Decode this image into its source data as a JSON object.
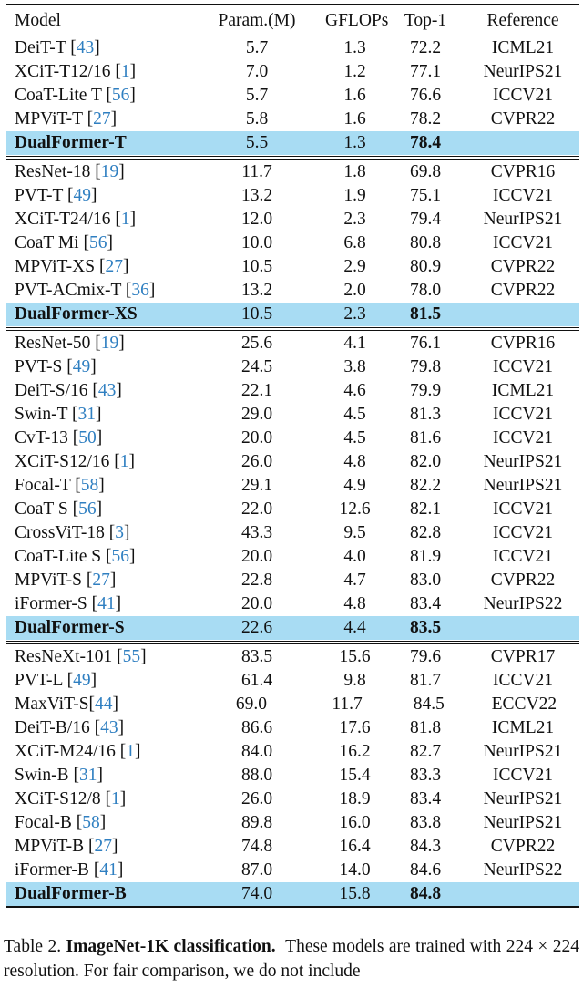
{
  "table": {
    "headers": [
      "Model",
      "Param.(M)",
      "GFLOPs",
      "Top-1",
      "Reference"
    ],
    "groups": [
      {
        "rows": [
          {
            "model": "DeiT-T",
            "cite": "43",
            "param": "5.7",
            "gflops": "1.3",
            "top1": "72.2",
            "ref": "ICML21"
          },
          {
            "model": "XCiT-T12/16",
            "cite": "1",
            "param": "7.0",
            "gflops": "1.2",
            "top1": "77.1",
            "ref": "NeurIPS21"
          },
          {
            "model": "CoaT-Lite T",
            "cite": "56",
            "param": "5.7",
            "gflops": "1.6",
            "top1": "76.6",
            "ref": "ICCV21"
          },
          {
            "model": "MPViT-T",
            "cite": "27",
            "param": "5.8",
            "gflops": "1.6",
            "top1": "78.2",
            "ref": "CVPR22"
          },
          {
            "model": "DualFormer-T",
            "cite": "",
            "param": "5.5",
            "gflops": "1.3",
            "top1": "78.4",
            "ref": "",
            "highlight": true
          }
        ]
      },
      {
        "rows": [
          {
            "model": "ResNet-18",
            "cite": "19",
            "param": "11.7",
            "gflops": "1.8",
            "top1": "69.8",
            "ref": "CVPR16"
          },
          {
            "model": "PVT-T",
            "cite": "49",
            "param": "13.2",
            "gflops": "1.9",
            "top1": "75.1",
            "ref": "ICCV21"
          },
          {
            "model": "XCiT-T24/16",
            "cite": "1",
            "param": "12.0",
            "gflops": "2.3",
            "top1": "79.4",
            "ref": "NeurIPS21"
          },
          {
            "model": "CoaT Mi",
            "cite": "56",
            "param": "10.0",
            "gflops": "6.8",
            "top1": "80.8",
            "ref": "ICCV21"
          },
          {
            "model": "MPViT-XS",
            "cite": "27",
            "param": "10.5",
            "gflops": "2.9",
            "top1": "80.9",
            "ref": "CVPR22"
          },
          {
            "model": "PVT-ACmix-T",
            "cite": "36",
            "param": "13.2",
            "gflops": "2.0",
            "top1": "78.0",
            "ref": "CVPR22"
          },
          {
            "model": "DualFormer-XS",
            "cite": "",
            "param": "10.5",
            "gflops": "2.3",
            "top1": "81.5",
            "ref": "",
            "highlight": true
          }
        ]
      },
      {
        "rows": [
          {
            "model": "ResNet-50",
            "cite": "19",
            "param": "25.6",
            "gflops": "4.1",
            "top1": "76.1",
            "ref": "CVPR16"
          },
          {
            "model": "PVT-S",
            "cite": "49",
            "param": "24.5",
            "gflops": "3.8",
            "top1": "79.8",
            "ref": "ICCV21"
          },
          {
            "model": "DeiT-S/16",
            "cite": "43",
            "param": "22.1",
            "gflops": "4.6",
            "top1": "79.9",
            "ref": "ICML21"
          },
          {
            "model": "Swin-T",
            "cite": "31",
            "param": "29.0",
            "gflops": "4.5",
            "top1": "81.3",
            "ref": "ICCV21"
          },
          {
            "model": "CvT-13",
            "cite": "50",
            "param": "20.0",
            "gflops": "4.5",
            "top1": "81.6",
            "ref": "ICCV21"
          },
          {
            "model": "XCiT-S12/16",
            "cite": "1",
            "param": "26.0",
            "gflops": "4.8",
            "top1": "82.0",
            "ref": "NeurIPS21"
          },
          {
            "model": "Focal-T",
            "cite": "58",
            "param": "29.1",
            "gflops": "4.9",
            "top1": "82.2",
            "ref": "NeurIPS21"
          },
          {
            "model": "CoaT S",
            "cite": "56",
            "param": "22.0",
            "gflops": "12.6",
            "top1": "82.1",
            "ref": "ICCV21"
          },
          {
            "model": "CrossViT-18",
            "cite": "3",
            "param": "43.3",
            "gflops": "9.5",
            "top1": "82.8",
            "ref": "ICCV21"
          },
          {
            "model": "CoaT-Lite S",
            "cite": "56",
            "param": "20.0",
            "gflops": "4.0",
            "top1": "81.9",
            "ref": "ICCV21"
          },
          {
            "model": "MPViT-S",
            "cite": "27",
            "param": "22.8",
            "gflops": "4.7",
            "top1": "83.0",
            "ref": "CVPR22"
          },
          {
            "model": "iFormer-S",
            "cite": "41",
            "param": "20.0",
            "gflops": "4.8",
            "top1": "83.4",
            "ref": "NeurIPS22"
          },
          {
            "model": "DualFormer-S",
            "cite": "",
            "param": "22.6",
            "gflops": "4.4",
            "top1": "83.5",
            "ref": "",
            "highlight": true
          }
        ]
      },
      {
        "rows": [
          {
            "model": "ResNeXt-101",
            "cite": "55",
            "param": "83.5",
            "gflops": "15.6",
            "top1": "79.6",
            "ref": "CVPR17"
          },
          {
            "model": "PVT-L",
            "cite": "49",
            "param": "61.4",
            "gflops": "9.8",
            "top1": "81.7",
            "ref": "ICCV21"
          },
          {
            "model": "MaxViT-S",
            "cite": "44",
            "nospace": true,
            "param": "69.0",
            "gflops": "11.7",
            "top1": "84.5",
            "ref": "ECCV22",
            "top1_shift": true
          },
          {
            "model": "DeiT-B/16",
            "cite": "43",
            "param": "86.6",
            "gflops": "17.6",
            "top1": "81.8",
            "ref": "ICML21"
          },
          {
            "model": "XCiT-M24/16",
            "cite": "1",
            "param": "84.0",
            "gflops": "16.2",
            "top1": "82.7",
            "ref": "NeurIPS21"
          },
          {
            "model": "Swin-B",
            "cite": "31",
            "param": "88.0",
            "gflops": "15.4",
            "top1": "83.3",
            "ref": "ICCV21"
          },
          {
            "model": "XCiT-S12/8",
            "cite": "1",
            "param": "26.0",
            "gflops": "18.9",
            "top1": "83.4",
            "ref": "NeurIPS21"
          },
          {
            "model": "Focal-B",
            "cite": "58",
            "param": "89.8",
            "gflops": "16.0",
            "top1": "83.8",
            "ref": "NeurIPS21"
          },
          {
            "model": "MPViT-B",
            "cite": "27",
            "param": "74.8",
            "gflops": "16.4",
            "top1": "84.3",
            "ref": "CVPR22"
          },
          {
            "model": "iFormer-B",
            "cite": "41",
            "param": "87.0",
            "gflops": "14.0",
            "top1": "84.6",
            "ref": "NeurIPS22"
          },
          {
            "model": "DualFormer-B",
            "cite": "",
            "param": "74.0",
            "gflops": "15.8",
            "top1": "84.8",
            "ref": "",
            "highlight": true
          }
        ]
      }
    ]
  },
  "caption": {
    "label": "Table 2.",
    "title": "ImageNet-1K classification.",
    "text": "These models are trained with 224 × 224 resolution. For fair comparison, we do not include"
  },
  "colors": {
    "highlight": "#a8dcf3",
    "cite": "#2f7fc1"
  }
}
